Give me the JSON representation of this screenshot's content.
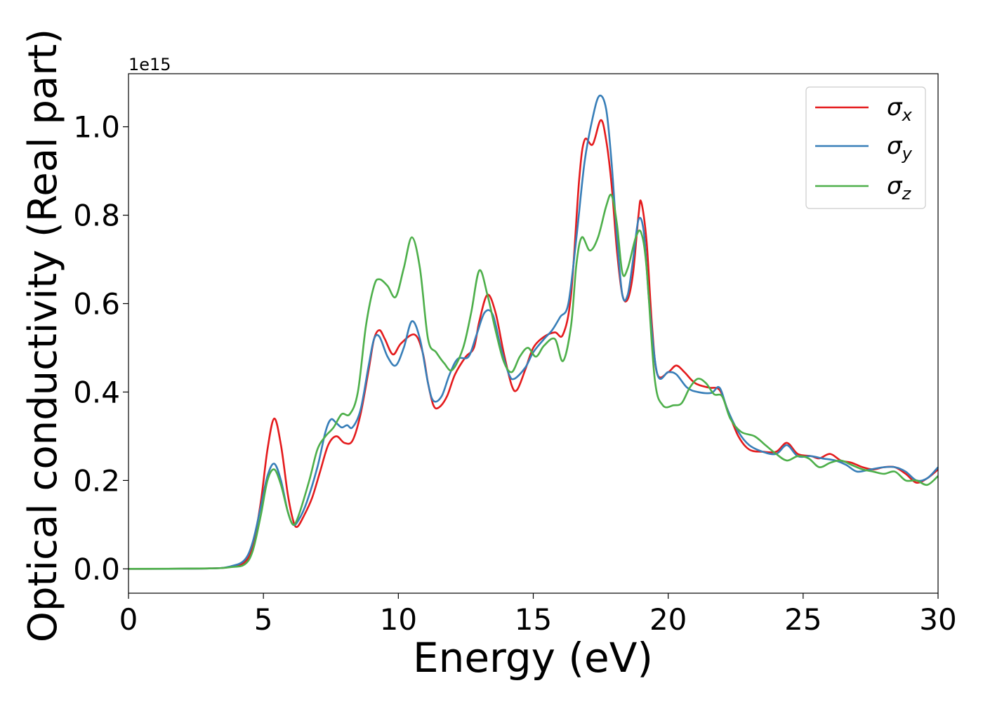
{
  "chart_data": {
    "type": "line",
    "title": "",
    "xlabel": "Energy (eV)",
    "ylabel": "Optical conductivity (Real part)",
    "offset_text": "1e15",
    "xlim": [
      0,
      30
    ],
    "ylim": [
      -0.055,
      1.12
    ],
    "xticks": [
      0,
      5,
      10,
      15,
      20,
      25,
      30
    ],
    "xtick_labels": [
      "0",
      "5",
      "10",
      "15",
      "20",
      "25",
      "30"
    ],
    "yticks": [
      0.0,
      0.2,
      0.4,
      0.6,
      0.8,
      1.0
    ],
    "ytick_labels": [
      "0.0",
      "0.2",
      "0.4",
      "0.6",
      "0.8",
      "1.0"
    ],
    "grid": false,
    "legend_position": "top-right",
    "series": [
      {
        "name": "σx",
        "legend_symbol": "σ",
        "legend_sub": "x",
        "color": "#e41a1c",
        "points": [
          [
            0,
            0
          ],
          [
            3,
            0.001
          ],
          [
            3.8,
            0.005
          ],
          [
            4.3,
            0.015
          ],
          [
            4.6,
            0.05
          ],
          [
            4.9,
            0.15
          ],
          [
            5.15,
            0.27
          ],
          [
            5.4,
            0.34
          ],
          [
            5.65,
            0.28
          ],
          [
            5.9,
            0.17
          ],
          [
            6.1,
            0.11
          ],
          [
            6.25,
            0.095
          ],
          [
            6.5,
            0.12
          ],
          [
            6.8,
            0.16
          ],
          [
            7.1,
            0.22
          ],
          [
            7.4,
            0.28
          ],
          [
            7.7,
            0.3
          ],
          [
            8.0,
            0.285
          ],
          [
            8.3,
            0.29
          ],
          [
            8.6,
            0.35
          ],
          [
            8.9,
            0.45
          ],
          [
            9.1,
            0.52
          ],
          [
            9.3,
            0.54
          ],
          [
            9.5,
            0.52
          ],
          [
            9.8,
            0.485
          ],
          [
            10.1,
            0.51
          ],
          [
            10.6,
            0.53
          ],
          [
            10.9,
            0.49
          ],
          [
            11.1,
            0.42
          ],
          [
            11.3,
            0.37
          ],
          [
            11.5,
            0.365
          ],
          [
            11.8,
            0.39
          ],
          [
            12.1,
            0.44
          ],
          [
            12.5,
            0.48
          ],
          [
            12.8,
            0.5
          ],
          [
            13.0,
            0.56
          ],
          [
            13.3,
            0.62
          ],
          [
            13.6,
            0.58
          ],
          [
            13.9,
            0.49
          ],
          [
            14.2,
            0.415
          ],
          [
            14.4,
            0.405
          ],
          [
            14.7,
            0.45
          ],
          [
            15.0,
            0.5
          ],
          [
            15.4,
            0.525
          ],
          [
            15.8,
            0.535
          ],
          [
            16.1,
            0.53
          ],
          [
            16.4,
            0.62
          ],
          [
            16.7,
            0.88
          ],
          [
            16.9,
            0.97
          ],
          [
            17.2,
            0.96
          ],
          [
            17.5,
            1.015
          ],
          [
            17.7,
            0.97
          ],
          [
            17.9,
            0.87
          ],
          [
            18.1,
            0.72
          ],
          [
            18.3,
            0.62
          ],
          [
            18.5,
            0.61
          ],
          [
            18.7,
            0.67
          ],
          [
            18.9,
            0.8
          ],
          [
            19.0,
            0.83
          ],
          [
            19.2,
            0.74
          ],
          [
            19.4,
            0.55
          ],
          [
            19.6,
            0.44
          ],
          [
            20.0,
            0.445
          ],
          [
            20.3,
            0.46
          ],
          [
            20.6,
            0.445
          ],
          [
            21.0,
            0.42
          ],
          [
            21.5,
            0.41
          ],
          [
            21.9,
            0.405
          ],
          [
            22.2,
            0.36
          ],
          [
            22.6,
            0.3
          ],
          [
            23.0,
            0.27
          ],
          [
            23.5,
            0.265
          ],
          [
            24.0,
            0.265
          ],
          [
            24.4,
            0.285
          ],
          [
            24.8,
            0.26
          ],
          [
            25.3,
            0.255
          ],
          [
            25.6,
            0.25
          ],
          [
            26.0,
            0.26
          ],
          [
            26.4,
            0.245
          ],
          [
            26.8,
            0.24
          ],
          [
            27.2,
            0.23
          ],
          [
            27.6,
            0.225
          ],
          [
            28.0,
            0.23
          ],
          [
            28.4,
            0.23
          ],
          [
            28.8,
            0.215
          ],
          [
            29.2,
            0.195
          ],
          [
            29.6,
            0.205
          ],
          [
            30.0,
            0.225
          ]
        ]
      },
      {
        "name": "σy",
        "legend_symbol": "σ",
        "legend_sub": "y",
        "color": "#377eb8",
        "points": [
          [
            0,
            0
          ],
          [
            3,
            0.001
          ],
          [
            3.8,
            0.006
          ],
          [
            4.3,
            0.02
          ],
          [
            4.6,
            0.06
          ],
          [
            4.9,
            0.14
          ],
          [
            5.15,
            0.21
          ],
          [
            5.4,
            0.238
          ],
          [
            5.65,
            0.2
          ],
          [
            5.9,
            0.13
          ],
          [
            6.1,
            0.1
          ],
          [
            6.3,
            0.11
          ],
          [
            6.6,
            0.15
          ],
          [
            7.0,
            0.23
          ],
          [
            7.3,
            0.31
          ],
          [
            7.5,
            0.338
          ],
          [
            7.7,
            0.33
          ],
          [
            7.9,
            0.32
          ],
          [
            8.1,
            0.325
          ],
          [
            8.3,
            0.32
          ],
          [
            8.6,
            0.36
          ],
          [
            8.9,
            0.46
          ],
          [
            9.1,
            0.52
          ],
          [
            9.3,
            0.525
          ],
          [
            9.6,
            0.48
          ],
          [
            9.9,
            0.46
          ],
          [
            10.2,
            0.5
          ],
          [
            10.5,
            0.56
          ],
          [
            10.8,
            0.52
          ],
          [
            11.1,
            0.42
          ],
          [
            11.3,
            0.38
          ],
          [
            11.6,
            0.39
          ],
          [
            11.9,
            0.44
          ],
          [
            12.2,
            0.475
          ],
          [
            12.6,
            0.48
          ],
          [
            12.9,
            0.53
          ],
          [
            13.2,
            0.58
          ],
          [
            13.5,
            0.575
          ],
          [
            13.8,
            0.5
          ],
          [
            14.1,
            0.44
          ],
          [
            14.3,
            0.43
          ],
          [
            14.7,
            0.455
          ],
          [
            15.0,
            0.49
          ],
          [
            15.4,
            0.52
          ],
          [
            15.7,
            0.54
          ],
          [
            16.0,
            0.57
          ],
          [
            16.3,
            0.6
          ],
          [
            16.6,
            0.75
          ],
          [
            16.9,
            0.92
          ],
          [
            17.2,
            1.02
          ],
          [
            17.45,
            1.07
          ],
          [
            17.7,
            1.04
          ],
          [
            17.9,
            0.92
          ],
          [
            18.1,
            0.75
          ],
          [
            18.3,
            0.62
          ],
          [
            18.5,
            0.62
          ],
          [
            18.7,
            0.7
          ],
          [
            18.9,
            0.79
          ],
          [
            19.1,
            0.76
          ],
          [
            19.3,
            0.6
          ],
          [
            19.6,
            0.44
          ],
          [
            20.0,
            0.445
          ],
          [
            20.3,
            0.44
          ],
          [
            20.7,
            0.41
          ],
          [
            21.1,
            0.4
          ],
          [
            21.6,
            0.398
          ],
          [
            21.9,
            0.41
          ],
          [
            22.2,
            0.36
          ],
          [
            22.6,
            0.31
          ],
          [
            23.0,
            0.28
          ],
          [
            23.5,
            0.265
          ],
          [
            24.0,
            0.26
          ],
          [
            24.4,
            0.28
          ],
          [
            24.8,
            0.255
          ],
          [
            25.3,
            0.255
          ],
          [
            25.7,
            0.25
          ],
          [
            26.2,
            0.245
          ],
          [
            26.6,
            0.235
          ],
          [
            27.0,
            0.22
          ],
          [
            27.5,
            0.225
          ],
          [
            28.0,
            0.23
          ],
          [
            28.4,
            0.23
          ],
          [
            28.8,
            0.22
          ],
          [
            29.2,
            0.2
          ],
          [
            29.6,
            0.205
          ],
          [
            30.0,
            0.23
          ]
        ]
      },
      {
        "name": "σz",
        "legend_symbol": "σ",
        "legend_sub": "z",
        "color": "#4daf4a",
        "points": [
          [
            0,
            0
          ],
          [
            3,
            0.001
          ],
          [
            3.8,
            0.004
          ],
          [
            4.3,
            0.01
          ],
          [
            4.6,
            0.04
          ],
          [
            4.9,
            0.12
          ],
          [
            5.15,
            0.2
          ],
          [
            5.4,
            0.225
          ],
          [
            5.65,
            0.19
          ],
          [
            5.9,
            0.13
          ],
          [
            6.1,
            0.1
          ],
          [
            6.3,
            0.12
          ],
          [
            6.7,
            0.2
          ],
          [
            7.0,
            0.27
          ],
          [
            7.3,
            0.3
          ],
          [
            7.6,
            0.32
          ],
          [
            7.9,
            0.35
          ],
          [
            8.2,
            0.35
          ],
          [
            8.5,
            0.4
          ],
          [
            8.8,
            0.55
          ],
          [
            9.1,
            0.64
          ],
          [
            9.3,
            0.655
          ],
          [
            9.6,
            0.64
          ],
          [
            9.9,
            0.615
          ],
          [
            10.2,
            0.68
          ],
          [
            10.5,
            0.75
          ],
          [
            10.8,
            0.68
          ],
          [
            11.1,
            0.52
          ],
          [
            11.4,
            0.49
          ],
          [
            11.7,
            0.465
          ],
          [
            12.0,
            0.45
          ],
          [
            12.4,
            0.5
          ],
          [
            12.7,
            0.58
          ],
          [
            13.0,
            0.675
          ],
          [
            13.3,
            0.62
          ],
          [
            13.6,
            0.54
          ],
          [
            13.9,
            0.47
          ],
          [
            14.2,
            0.445
          ],
          [
            14.5,
            0.48
          ],
          [
            14.8,
            0.5
          ],
          [
            15.1,
            0.48
          ],
          [
            15.4,
            0.505
          ],
          [
            15.8,
            0.52
          ],
          [
            16.1,
            0.47
          ],
          [
            16.4,
            0.55
          ],
          [
            16.6,
            0.69
          ],
          [
            16.8,
            0.75
          ],
          [
            17.1,
            0.72
          ],
          [
            17.4,
            0.75
          ],
          [
            17.7,
            0.82
          ],
          [
            17.9,
            0.845
          ],
          [
            18.1,
            0.78
          ],
          [
            18.3,
            0.67
          ],
          [
            18.5,
            0.68
          ],
          [
            18.8,
            0.75
          ],
          [
            19.0,
            0.76
          ],
          [
            19.2,
            0.68
          ],
          [
            19.5,
            0.43
          ],
          [
            19.8,
            0.37
          ],
          [
            20.2,
            0.37
          ],
          [
            20.5,
            0.375
          ],
          [
            20.8,
            0.41
          ],
          [
            21.1,
            0.43
          ],
          [
            21.4,
            0.42
          ],
          [
            21.7,
            0.395
          ],
          [
            22.0,
            0.39
          ],
          [
            22.3,
            0.34
          ],
          [
            22.7,
            0.31
          ],
          [
            23.2,
            0.3
          ],
          [
            23.6,
            0.28
          ],
          [
            24.0,
            0.26
          ],
          [
            24.4,
            0.245
          ],
          [
            24.8,
            0.255
          ],
          [
            25.2,
            0.25
          ],
          [
            25.6,
            0.23
          ],
          [
            26.0,
            0.24
          ],
          [
            26.4,
            0.245
          ],
          [
            26.8,
            0.235
          ],
          [
            27.2,
            0.225
          ],
          [
            27.6,
            0.22
          ],
          [
            28.0,
            0.215
          ],
          [
            28.4,
            0.22
          ],
          [
            28.8,
            0.2
          ],
          [
            29.2,
            0.2
          ],
          [
            29.6,
            0.19
          ],
          [
            30.0,
            0.21
          ]
        ]
      }
    ]
  }
}
